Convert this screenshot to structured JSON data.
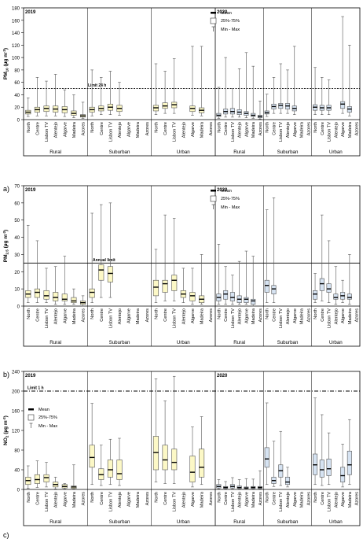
{
  "figure": {
    "legend": {
      "mean": "Mean",
      "iqr": "25%-75%",
      "range": "Min - Max"
    },
    "colors": {
      "y2019": "#fcf8c6",
      "y2020": "#d6e3f2",
      "stroke": "#555555",
      "limit": "#000000"
    }
  },
  "chart_data": [
    {
      "type": "boxplot",
      "panel_label": "a)",
      "ylabel_html": [
        "PM",
        "10",
        " (µg m",
        "-3",
        ")"
      ],
      "ylim": [
        0,
        180
      ],
      "yticks": [
        0,
        20,
        40,
        60,
        80,
        100,
        120,
        140,
        160,
        180
      ],
      "grid": false,
      "years": [
        "2019",
        "2020"
      ],
      "groups": [
        "Rural",
        "Suburban",
        "Urban"
      ],
      "regions": [
        "North",
        "Centre",
        "Lisbon TV",
        "Alentejo",
        "Algarve",
        "Madeira",
        "Azores"
      ],
      "limit": {
        "label": "Limit 24 h",
        "value": 50
      },
      "data": {
        "2019": {
          "Rural": [
            [
              5,
              9,
              12,
              15,
              35
            ],
            [
              6,
              12,
              16,
              20,
              68
            ],
            [
              6,
              13,
              18,
              22,
              62
            ],
            [
              6,
              12,
              17,
              22,
              73
            ],
            [
              5,
              11,
              16,
              21,
              48
            ],
            [
              3,
              7,
              10,
              14,
              40
            ],
            [
              2,
              4,
              6,
              8,
              28
            ]
          ],
          "Suburban": [
            [
              6,
              12,
              16,
              20,
              80
            ],
            [
              8,
              14,
              18,
              22,
              68
            ],
            [
              8,
              15,
              20,
              25,
              78
            ],
            [
              7,
              13,
              18,
              23,
              60
            ],
            null,
            null,
            null
          ],
          "Urban": [
            [
              8,
              14,
              19,
              23,
              90
            ],
            [
              10,
              18,
              22,
              27,
              78
            ],
            [
              10,
              19,
              24,
              28,
              98
            ],
            null,
            [
              7,
              13,
              18,
              22,
              118
            ],
            [
              6,
              11,
              15,
              19,
              118
            ],
            null
          ]
        },
        "2020": {
          "Rural": [
            [
              2,
              5,
              7,
              10,
              52
            ],
            [
              4,
              9,
              13,
              17,
              100
            ],
            [
              4,
              9,
              13,
              18,
              50
            ],
            [
              4,
              8,
              12,
              16,
              82
            ],
            [
              3,
              7,
              10,
              13,
              108
            ],
            [
              2,
              5,
              7,
              10,
              86
            ],
            [
              1,
              3,
              5,
              7,
              30
            ]
          ],
          "Suburban": [
            [
              5,
              9,
              11,
              14,
              41
            ],
            [
              10,
              17,
              21,
              25,
              68
            ],
            [
              10,
              18,
              23,
              26,
              90
            ],
            [
              10,
              17,
              22,
              26,
              80
            ],
            [
              8,
              14,
              18,
              22,
              118
            ],
            null,
            null
          ],
          "Urban": [
            [
              8,
              15,
              20,
              24,
              84
            ],
            [
              8,
              15,
              19,
              23,
              68
            ],
            [
              8,
              15,
              19,
              23,
              64
            ],
            null,
            [
              10,
              18,
              25,
              29,
              166
            ],
            [
              6,
              12,
              17,
              21,
              120
            ],
            null
          ]
        }
      }
    },
    {
      "type": "boxplot",
      "panel_label": "b)",
      "ylabel_html": [
        "PM",
        "2.5",
        " (µg m",
        "-3",
        ")"
      ],
      "ylim": [
        0,
        70
      ],
      "yticks": [
        0,
        10,
        20,
        30,
        40,
        50,
        60,
        70
      ],
      "grid": false,
      "years": [
        "2019",
        "2020"
      ],
      "groups": [
        "Rural",
        "Suburban",
        "Urban"
      ],
      "regions": [
        "North",
        "Centre",
        "Lisbon TV",
        "Alentejo",
        "Algarve",
        "Madeira",
        "Azores"
      ],
      "limit": {
        "label": "Annual limit",
        "value": 25
      },
      "data": {
        "2019": {
          "Rural": [
            [
              2,
              5,
              7,
              9,
              47
            ],
            [
              2,
              5,
              8,
              10,
              38
            ],
            [
              2,
              4,
              6,
              9,
              22
            ],
            [
              1,
              3,
              5,
              8,
              23
            ],
            [
              1,
              3,
              4,
              7,
              29
            ],
            [
              1,
              2,
              3,
              5,
              10
            ],
            [
              0,
              1,
              2,
              3,
              6
            ]
          ],
          "Suburban": [
            [
              2,
              5,
              8,
              10,
              54
            ],
            [
              5,
              15,
              21,
              24,
              59
            ],
            [
              5,
              14,
              19,
              23,
              60
            ],
            null,
            null,
            null,
            null
          ],
          "Urban": [
            [
              2,
              6,
              11,
              15,
              33
            ],
            [
              3,
              8,
              13,
              15,
              53
            ],
            [
              3,
              9,
              15,
              18,
              51
            ],
            [
              2,
              5,
              7,
              9,
              22
            ],
            [
              1,
              3,
              6,
              8,
              22
            ],
            [
              1,
              2,
              4,
              6,
              30
            ],
            null
          ]
        },
        "2020": {
          "Rural": [
            [
              1,
              3,
              5,
              7,
              36
            ],
            [
              1,
              4,
              7,
              9,
              23
            ],
            [
              1,
              3,
              5,
              8,
              18
            ],
            [
              1,
              2,
              4,
              6,
              26
            ],
            [
              1,
              2,
              4,
              5,
              32
            ],
            [
              0,
              1,
              3,
              4,
              29
            ],
            null
          ],
          "Suburban": [
            [
              2,
              8,
              12,
              15,
              56
            ],
            [
              2,
              7,
              10,
              12,
              63
            ],
            null,
            null,
            null,
            null,
            null
          ],
          "Urban": [
            [
              2,
              4,
              7,
              9,
              19
            ],
            [
              3,
              9,
              13,
              16,
              53
            ],
            [
              2,
              8,
              10,
              13,
              38
            ],
            [
              1,
              4,
              5,
              7,
              23
            ],
            [
              2,
              4,
              6,
              8,
              15
            ],
            [
              1,
              4,
              5,
              7,
              30
            ],
            null
          ]
        }
      }
    },
    {
      "type": "boxplot",
      "panel_label": "c)",
      "ylabel_html": [
        "NO",
        "2",
        " (µg m",
        "-3",
        ")"
      ],
      "ylim": [
        0,
        240
      ],
      "yticks": [
        0,
        40,
        80,
        120,
        160,
        200,
        240
      ],
      "grid": false,
      "years": [
        "2019",
        "2020"
      ],
      "groups": [
        "Rural",
        "Suburban",
        "Urban"
      ],
      "regions": [
        "North",
        "Centre",
        "Lisbon TV",
        "Alentejo",
        "Algarve",
        "Madeira",
        "Azores"
      ],
      "limit": {
        "label": "Limit 1 h",
        "value": 200
      },
      "data": {
        "2019": {
          "Rural": [
            [
              2,
              10,
              18,
              25,
              48
            ],
            [
              4,
              12,
              20,
              30,
              58
            ],
            [
              5,
              15,
              24,
              30,
              55
            ],
            [
              1,
              5,
              10,
              15,
              25
            ],
            [
              1,
              3,
              6,
              10,
              12
            ],
            [
              1,
              2,
              5,
              7,
              50
            ],
            null
          ],
          "Suburban": [
            [
              10,
              45,
              65,
              90,
              175
            ],
            [
              8,
              20,
              30,
              42,
              90
            ],
            [
              10,
              25,
              40,
              60,
              102
            ],
            [
              8,
              20,
              32,
              60,
              104
            ],
            null,
            null,
            null
          ],
          "Urban": [
            [
              15,
              40,
              75,
              108,
              225
            ],
            [
              12,
              40,
              60,
              90,
              180
            ],
            [
              12,
              40,
              55,
              82,
              230
            ],
            null,
            [
              5,
              15,
              35,
              68,
              127
            ],
            [
              10,
              25,
              45,
              82,
              148
            ],
            null
          ]
        },
        "2020": {
          "Rural": [
            [
              1,
              3,
              6,
              10,
              20
            ],
            [
              1,
              2,
              4,
              6,
              16
            ],
            [
              1,
              3,
              6,
              10,
              24
            ],
            [
              1,
              2,
              4,
              7,
              20
            ],
            [
              1,
              2,
              3,
              5,
              22
            ],
            [
              1,
              2,
              4,
              6,
              21
            ],
            [
              1,
              2,
              4,
              6,
              38
            ]
          ],
          "Suburban": [
            [
              10,
              45,
              62,
              85,
              176
            ],
            [
              6,
              12,
              18,
              25,
              98
            ],
            [
              8,
              25,
              38,
              50,
              118
            ],
            [
              5,
              10,
              15,
              25,
              45
            ],
            null,
            null,
            null
          ],
          "Urban": [
            [
              10,
              30,
              50,
              72,
              186
            ],
            [
              8,
              25,
              40,
              60,
              152
            ],
            [
              10,
              28,
              42,
              62,
              115
            ],
            null,
            [
              5,
              15,
              28,
              45,
              92
            ],
            [
              10,
              30,
              50,
              78,
              142
            ],
            null
          ]
        }
      }
    }
  ]
}
